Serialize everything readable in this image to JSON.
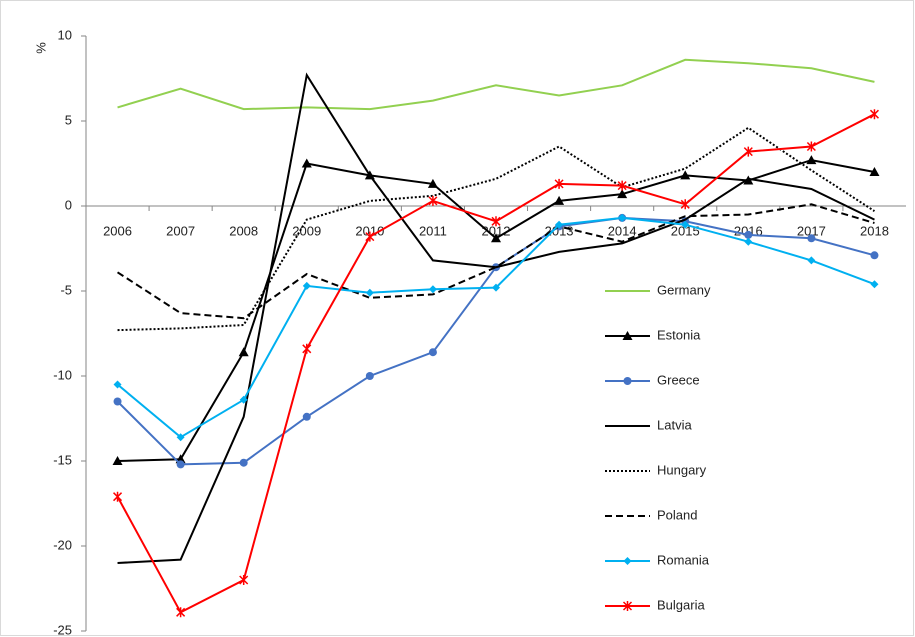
{
  "chart_data": {
    "type": "line",
    "y_label": "%",
    "categories": [
      "2006",
      "2007",
      "2008",
      "2009",
      "2010",
      "2011",
      "2012",
      "2013",
      "2014",
      "2015",
      "2016",
      "2017",
      "2018"
    ],
    "ylim": [
      -25,
      10
    ],
    "yticks": [
      -25,
      -20,
      -15,
      -10,
      -5,
      0,
      5,
      10
    ],
    "series": [
      {
        "name": "Germany",
        "color": "#92d050",
        "dash": "solid",
        "marker": "none",
        "values": [
          5.8,
          6.9,
          5.7,
          5.8,
          5.7,
          6.2,
          7.1,
          6.5,
          7.1,
          8.6,
          8.4,
          8.1,
          7.3
        ]
      },
      {
        "name": "Estonia",
        "color": "#000000",
        "dash": "solid",
        "marker": "triangle",
        "values": [
          -15.0,
          -14.9,
          -8.6,
          2.5,
          1.8,
          1.3,
          -1.9,
          0.3,
          0.7,
          1.8,
          1.5,
          2.7,
          2.0
        ]
      },
      {
        "name": "Greece",
        "color": "#4472c4",
        "dash": "solid",
        "marker": "circle",
        "values": [
          -11.5,
          -15.2,
          -15.1,
          -12.4,
          -10.0,
          -8.6,
          -3.6,
          -1.2,
          -0.7,
          -0.9,
          -1.7,
          -1.9,
          -2.9
        ]
      },
      {
        "name": "Latvia",
        "color": "#000000",
        "dash": "solid",
        "marker": "none",
        "values": [
          -21.0,
          -20.8,
          -12.4,
          7.7,
          1.8,
          -3.2,
          -3.6,
          -2.7,
          -2.2,
          -0.8,
          1.6,
          1.0,
          -0.8
        ]
      },
      {
        "name": "Hungary",
        "color": "#000000",
        "dash": "dotted",
        "marker": "none",
        "values": [
          -7.3,
          -7.2,
          -7.0,
          -0.8,
          0.3,
          0.6,
          1.6,
          3.5,
          1.1,
          2.2,
          4.6,
          2.1,
          -0.3
        ]
      },
      {
        "name": "Poland",
        "color": "#000000",
        "dash": "dashed",
        "marker": "none",
        "values": [
          -3.9,
          -6.3,
          -6.6,
          -4.0,
          -5.4,
          -5.2,
          -3.6,
          -1.2,
          -2.1,
          -0.6,
          -0.5,
          0.1,
          -1.0
        ]
      },
      {
        "name": "Romania",
        "color": "#00b0f0",
        "dash": "solid",
        "marker": "diamond",
        "values": [
          -10.5,
          -13.6,
          -11.4,
          -4.7,
          -5.1,
          -4.9,
          -4.8,
          -1.1,
          -0.7,
          -1.1,
          -2.1,
          -3.2,
          -4.6
        ]
      },
      {
        "name": "Bulgaria",
        "color": "#ff0000",
        "dash": "solid",
        "marker": "star",
        "values": [
          -17.1,
          -23.9,
          -22.0,
          -8.4,
          -1.8,
          0.3,
          -0.9,
          1.3,
          1.2,
          0.1,
          3.2,
          3.5,
          5.4
        ]
      }
    ]
  }
}
